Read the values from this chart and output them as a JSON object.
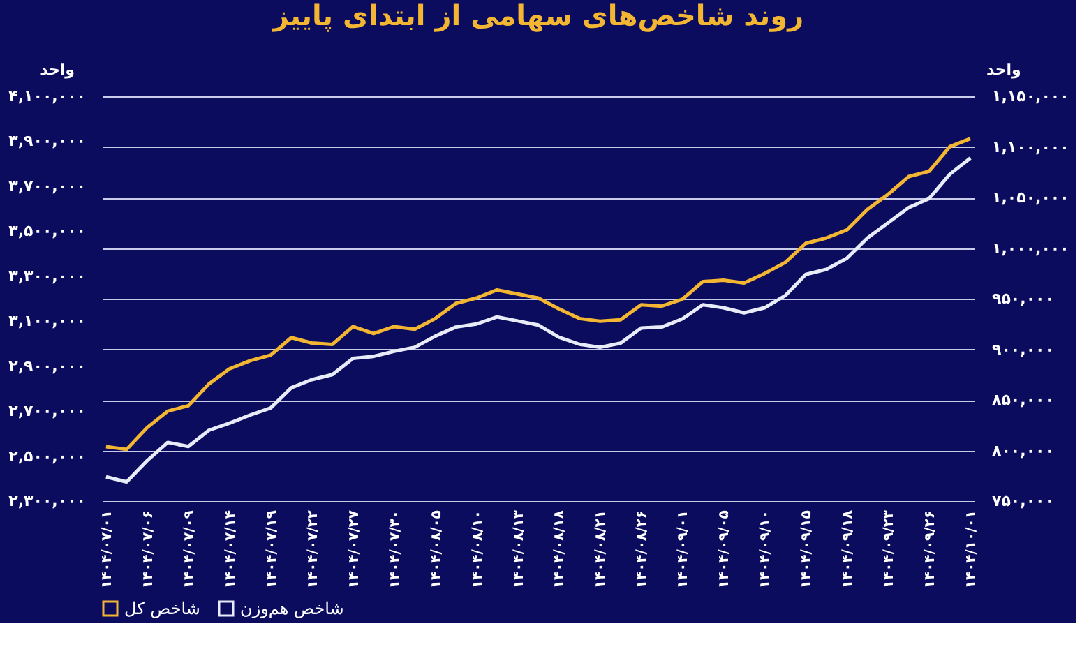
{
  "chart_data": {
    "type": "line",
    "title": "روند شاخص‌های سهامی از ابتدای پاییز",
    "ylabel": "واحد",
    "y2label": "واحد",
    "categories": [
      "۱۴۰۴/۰۷/۰۱",
      null,
      "۱۴۰۴/۰۷/۰۶",
      null,
      "۱۴۰۴/۰۷/۰۹",
      null,
      "۱۴۰۴/۰۷/۱۴",
      null,
      "۱۴۰۴/۰۷/۱۹",
      null,
      "۱۴۰۴/۰۷/۲۲",
      null,
      "۱۴۰۴/۰۷/۲۷",
      null,
      "۱۴۰۴/۰۷/۳۰",
      null,
      "۱۴۰۴/۰۸/۰۵",
      null,
      "۱۴۰۴/۰۸/۱۰",
      null,
      "۱۴۰۴/۰۸/۱۳",
      null,
      "۱۴۰۴/۰۸/۱۸",
      null,
      "۱۴۰۴/۰۸/۲۱",
      null,
      "۱۴۰۴/۰۸/۲۶",
      null,
      "۱۴۰۴/۰۹/۰۱",
      null,
      "۱۴۰۴/۰۹/۰۵",
      null,
      "۱۴۰۴/۰۹/۱۰",
      null,
      "۱۴۰۴/۰۹/۱۵",
      null,
      "۱۴۰۴/۰۹/۱۸",
      null,
      "۱۴۰۴/۰۹/۲۳",
      null,
      "۱۴۰۴/۰۹/۲۶",
      null,
      "۱۴۰۴/۱۰/۰۱"
    ],
    "series": [
      {
        "name": "شاخص کل",
        "color": "#f2b632",
        "values": [
          2542000,
          2530000,
          2627000,
          2700000,
          2724000,
          2821000,
          2888000,
          2924000,
          2949000,
          3027000,
          3003000,
          2997000,
          3076000,
          3045000,
          3076000,
          3064000,
          3112000,
          3179000,
          3203000,
          3239000,
          3221000,
          3203000,
          3155000,
          3112000,
          3100000,
          3106000,
          3173000,
          3167000,
          3197000,
          3276000,
          3282000,
          3270000,
          3312000,
          3361000,
          3446000,
          3470000,
          3506000,
          3597000,
          3664000,
          3743000,
          3767000,
          3876000,
          3912000
        ]
      },
      {
        "name": "شاخص هم‌وزن",
        "color": "#e8ecf8",
        "axis": "y2",
        "values": [
          774000,
          769000,
          790000,
          808000,
          804000,
          820000,
          827000,
          835000,
          842000,
          862000,
          870000,
          875000,
          891000,
          893000,
          898000,
          902000,
          913000,
          922000,
          925000,
          932000,
          928000,
          924000,
          912000,
          905000,
          902000,
          906000,
          921000,
          922000,
          930000,
          944000,
          941000,
          936000,
          941000,
          953000,
          974000,
          979000,
          990000,
          1010000,
          1025000,
          1040000,
          1049000,
          1073000,
          1089000
        ]
      }
    ],
    "ylim": [
      2300000,
      4100000
    ],
    "yticks": [
      {
        "value": 2300000,
        "label": "۲,۳۰۰,۰۰۰"
      },
      {
        "value": 2500000,
        "label": "۲,۵۰۰,۰۰۰"
      },
      {
        "value": 2700000,
        "label": "۲,۷۰۰,۰۰۰"
      },
      {
        "value": 2900000,
        "label": "۲,۹۰۰,۰۰۰"
      },
      {
        "value": 3100000,
        "label": "۳,۱۰۰,۰۰۰"
      },
      {
        "value": 3300000,
        "label": "۳,۳۰۰,۰۰۰"
      },
      {
        "value": 3500000,
        "label": "۳,۵۰۰,۰۰۰"
      },
      {
        "value": 3700000,
        "label": "۳,۷۰۰,۰۰۰"
      },
      {
        "value": 3900000,
        "label": "۳,۹۰۰,۰۰۰"
      },
      {
        "value": 4100000,
        "label": "۴,۱۰۰,۰۰۰"
      }
    ],
    "y2lim": [
      750000,
      1150000
    ],
    "y2ticks": [
      {
        "value": 750000,
        "label": "۷۵۰,۰۰۰"
      },
      {
        "value": 800000,
        "label": "۸۰۰,۰۰۰"
      },
      {
        "value": 850000,
        "label": "۸۵۰,۰۰۰"
      },
      {
        "value": 900000,
        "label": "۹۰۰,۰۰۰"
      },
      {
        "value": 950000,
        "label": "۹۵۰,۰۰۰"
      },
      {
        "value": 1000000,
        "label": "۱,۰۰۰,۰۰۰"
      },
      {
        "value": 1050000,
        "label": "۱,۰۵۰,۰۰۰"
      },
      {
        "value": 1100000,
        "label": "۱,۱۰۰,۰۰۰"
      },
      {
        "value": 1150000,
        "label": "۱,۱۵۰,۰۰۰"
      }
    ],
    "grid": "y",
    "legend": "bottom",
    "marker": "none",
    "line_style": "solid"
  }
}
